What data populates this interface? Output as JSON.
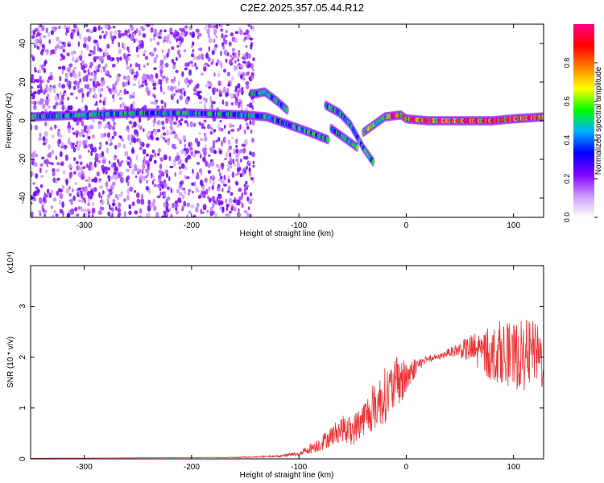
{
  "title": "C2E2.2025.357.05.44.R12",
  "chart_data": [
    {
      "type": "heatmap",
      "xlabel": "Height of straight line (km)",
      "ylabel": "Frequency (Hz)",
      "xlim": [
        -350,
        128
      ],
      "ylim": [
        -50,
        50
      ],
      "xticks": [
        -300,
        -200,
        -100,
        0,
        100
      ],
      "yticks": [
        -40,
        -20,
        0,
        20,
        40
      ],
      "colorbar": {
        "label": "Normalized spectral amplitude",
        "range": [
          0,
          1
        ],
        "ticks": [
          "0.0",
          "0.2",
          "0.4",
          "0.6",
          "0.8"
        ],
        "colors": [
          "#ffffff",
          "#cc99ff",
          "#8000ff",
          "#0000ff",
          "#00b0ff",
          "#00ff00",
          "#ffff00",
          "#ff8000",
          "#ff0000",
          "#ff0080"
        ]
      },
      "noise_region": {
        "x_from": -350,
        "x_to": -142,
        "freq_from": -50,
        "freq_to": 50
      },
      "ridges": [
        {
          "name": "",
          "points": [
            [
              -350,
              2
            ],
            [
              -300,
              3
            ],
            [
              -250,
              4
            ],
            [
              -200,
              4
            ],
            [
              -150,
              3
            ],
            [
              -130,
              2
            ],
            [
              -110,
              -2
            ],
            [
              -90,
              -6
            ],
            [
              -72,
              -10
            ]
          ]
        },
        {
          "name": "",
          "points": [
            [
              -145,
              14
            ],
            [
              -140,
              14
            ],
            [
              -132,
              15
            ],
            [
              -120,
              10
            ],
            [
              -110,
              5
            ]
          ]
        },
        {
          "name": "",
          "points": [
            [
              -75,
              8
            ],
            [
              -62,
              4
            ],
            [
              -52,
              -2
            ],
            [
              -46,
              -8
            ],
            [
              -40,
              -14
            ],
            [
              -35,
              -18
            ],
            [
              -30,
              -22
            ]
          ]
        },
        {
          "name": "",
          "points": [
            [
              -70,
              -4
            ],
            [
              -55,
              -10
            ],
            [
              -45,
              -14
            ]
          ]
        },
        {
          "name": "",
          "points": [
            [
              -40,
              -6
            ],
            [
              -30,
              -2
            ],
            [
              -20,
              2
            ],
            [
              -5,
              3
            ],
            [
              0,
              1
            ],
            [
              20,
              0
            ],
            [
              50,
              0
            ],
            [
              80,
              0
            ],
            [
              100,
              1
            ],
            [
              128,
              2
            ]
          ]
        }
      ]
    },
    {
      "type": "line",
      "xlabel": "Height of straight line (km)",
      "ylabel": "SNR (10 * v/v)",
      "multiplier": "(x10⁴)",
      "xlim": [
        -350,
        128
      ],
      "ylim": [
        0,
        3.8
      ],
      "xticks": [
        -300,
        -200,
        -100,
        0,
        100
      ],
      "yticks": [
        0,
        1,
        2,
        3
      ],
      "color": "#ee3333",
      "series": [
        {
          "x": [
            -350,
            -250,
            -150,
            -120,
            -100,
            -90,
            -80,
            -70,
            -60,
            -50,
            -40,
            -30,
            -20,
            -10,
            0,
            10,
            20,
            30,
            40,
            50,
            60,
            70,
            80,
            90,
            100,
            110,
            120,
            128
          ],
          "y": [
            0.01,
            0.02,
            0.03,
            0.05,
            0.1,
            0.2,
            0.3,
            0.45,
            0.6,
            0.55,
            0.8,
            1.0,
            1.25,
            1.45,
            1.6,
            1.85,
            1.95,
            2.0,
            2.1,
            2.15,
            2.15,
            2.1,
            2.05,
            2.1,
            2.0,
            2.05,
            2.1,
            1.9
          ],
          "noise": [
            0,
            0,
            0.01,
            0.02,
            0.05,
            0.1,
            0.15,
            0.2,
            0.25,
            0.3,
            0.35,
            0.45,
            0.55,
            0.5,
            0.4,
            0.15,
            0.05,
            0.05,
            0.08,
            0.15,
            0.3,
            0.45,
            0.55,
            0.6,
            0.65,
            0.7,
            0.6,
            0.6
          ]
        }
      ]
    }
  ]
}
